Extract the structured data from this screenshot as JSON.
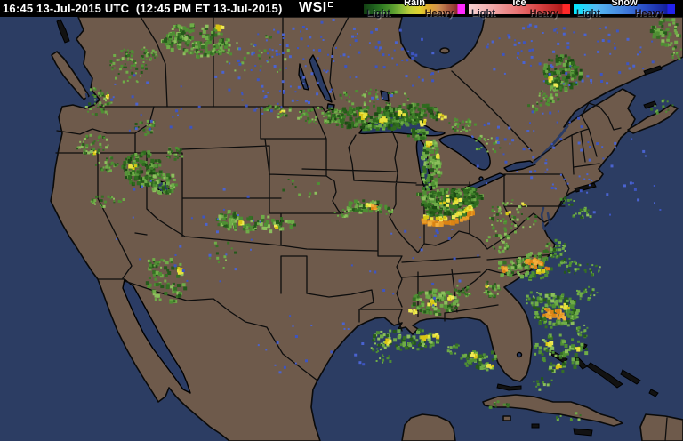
{
  "header": {
    "time_utc": "16:45 13-Jul-2015 UTC",
    "time_et": "(12:45 PM ET 13-Jul-2015)",
    "logo_text": "WSI",
    "logo_mark_icon": "square-mark",
    "bg_color": "#000000",
    "text_color": "#ffffff"
  },
  "legend": {
    "sections": [
      {
        "id": "rain",
        "label": "Rain",
        "light_label": "Light",
        "heavy_label": "Heavy",
        "gradient": [
          "#123f12",
          "#1d5c1d",
          "#2f7a22",
          "#55992e",
          "#86b83a",
          "#c2cf3a",
          "#e0d22e",
          "#e0a92e",
          "#cf8f52",
          "#a85c41",
          "#8c2d2d",
          "#ff2aff"
        ]
      },
      {
        "id": "ice",
        "label": "Ice",
        "light_label": "Light",
        "heavy_label": "Heavy",
        "gradient": [
          "#f6d2d2",
          "#f0a8a8",
          "#e87878",
          "#d94444",
          "#b01818",
          "#ff2828"
        ]
      },
      {
        "id": "snow",
        "label": "Snow",
        "light_label": "Light",
        "heavy_label": "Heavy",
        "gradient": [
          "#00eaff",
          "#55b8f2",
          "#4688e0",
          "#2b50c8",
          "#14209e",
          "#2222ee"
        ]
      }
    ]
  },
  "map": {
    "colors": {
      "ocean": "#2c3d63",
      "land": "#6e5a4b",
      "lake": "#2b3c64",
      "border": "#0d0d0d"
    },
    "palettes": {
      "g": [
        "#8cbf5c",
        "#6fac48",
        "#6fac48",
        "#4e8f33",
        "#4e8f33",
        "#356f24",
        "#25591b"
      ],
      "gd": [
        "#1c4a14",
        "#245a18",
        "#2f6b1f",
        "#2f6b1f",
        "#3d7d28",
        "#57963a",
        "#6fac48"
      ],
      "y": [
        "#e6e23c",
        "#d8c414",
        "#efea55"
      ],
      "o": [
        "#e89b28",
        "#db8414",
        "#f2ae3c"
      ],
      "b": [
        "#3d55c2",
        "#4a63d0"
      ]
    },
    "radar_cells": [
      [
        196,
        40,
        16,
        12,
        45,
        3,
        "g"
      ],
      [
        222,
        46,
        36,
        18,
        150,
        3,
        "g"
      ],
      [
        247,
        31,
        4,
        3,
        5,
        3,
        "y"
      ],
      [
        250,
        55,
        12,
        8,
        30,
        2,
        "g"
      ],
      [
        145,
        75,
        22,
        20,
        60,
        2,
        "g"
      ],
      [
        168,
        60,
        10,
        8,
        20,
        2,
        "g"
      ],
      [
        290,
        62,
        38,
        26,
        28,
        2,
        "g"
      ],
      [
        112,
        115,
        16,
        18,
        40,
        2,
        "g"
      ],
      [
        121,
        108,
        3,
        2,
        4,
        2,
        "y"
      ],
      [
        105,
        163,
        20,
        12,
        45,
        2,
        "g"
      ],
      [
        120,
        185,
        14,
        10,
        30,
        2,
        "g"
      ],
      [
        108,
        172,
        3,
        2,
        4,
        2,
        "y"
      ],
      [
        165,
        143,
        13,
        9,
        22,
        2,
        "g"
      ],
      [
        160,
        190,
        22,
        20,
        150,
        3,
        "gd"
      ],
      [
        184,
        205,
        15,
        13,
        55,
        3,
        "g"
      ],
      [
        150,
        187,
        4,
        3,
        6,
        3,
        "y"
      ],
      [
        196,
        173,
        10,
        7,
        22,
        2,
        "g"
      ],
      [
        120,
        226,
        20,
        8,
        26,
        2,
        "g"
      ],
      [
        188,
        316,
        24,
        25,
        70,
        3,
        "g"
      ],
      [
        203,
        304,
        4,
        3,
        5,
        3,
        "y"
      ],
      [
        174,
        296,
        10,
        7,
        18,
        2,
        "g"
      ],
      [
        250,
        287,
        17,
        16,
        12,
        2,
        "g"
      ],
      [
        420,
        133,
        56,
        13,
        240,
        3,
        "gd"
      ],
      [
        360,
        130,
        26,
        10,
        55,
        2,
        "g"
      ],
      [
        468,
        128,
        30,
        12,
        90,
        3,
        "gd"
      ],
      [
        408,
        130,
        4,
        3,
        7,
        3,
        "y"
      ],
      [
        432,
        136,
        4,
        3,
        7,
        3,
        "y"
      ],
      [
        452,
        128,
        4,
        3,
        6,
        3,
        "y"
      ],
      [
        476,
        138,
        4,
        3,
        6,
        3,
        "y"
      ],
      [
        497,
        131,
        4,
        3,
        5,
        3,
        "y"
      ],
      [
        420,
        110,
        40,
        11,
        40,
        2,
        "g"
      ],
      [
        310,
        125,
        20,
        7,
        26,
        2,
        "g"
      ],
      [
        318,
        126,
        3,
        2,
        4,
        2,
        "y"
      ],
      [
        520,
        140,
        16,
        8,
        30,
        2,
        "g"
      ],
      [
        485,
        185,
        11,
        28,
        100,
        3,
        "g"
      ],
      [
        482,
        162,
        3,
        3,
        5,
        3,
        "y"
      ],
      [
        492,
        176,
        3,
        2,
        4,
        3,
        "y"
      ],
      [
        470,
        151,
        12,
        6,
        26,
        3,
        "gd"
      ],
      [
        505,
        230,
        32,
        17,
        240,
        3,
        "gd"
      ],
      [
        526,
        222,
        17,
        11,
        70,
        3,
        "gd"
      ],
      [
        505,
        228,
        14,
        8,
        12,
        3,
        "y"
      ],
      [
        480,
        218,
        10,
        7,
        25,
        3,
        "g"
      ],
      [
        408,
        232,
        22,
        7,
        55,
        3,
        "g"
      ],
      [
        413,
        231,
        5,
        2,
        8,
        3,
        "y"
      ],
      [
        419,
        233,
        4,
        2,
        6,
        3,
        "o"
      ],
      [
        432,
        236,
        10,
        5,
        20,
        2,
        "g"
      ],
      [
        385,
        240,
        9,
        5,
        14,
        2,
        "g"
      ],
      [
        290,
        252,
        42,
        9,
        70,
        3,
        "g"
      ],
      [
        258,
        248,
        14,
        10,
        45,
        3,
        "g"
      ],
      [
        270,
        250,
        3,
        2,
        4,
        3,
        "y"
      ],
      [
        310,
        256,
        3,
        2,
        3,
        3,
        "y"
      ],
      [
        340,
        212,
        26,
        13,
        10,
        2,
        "g"
      ],
      [
        575,
        245,
        28,
        22,
        55,
        2,
        "g"
      ],
      [
        572,
        240,
        3,
        2,
        4,
        2,
        "y"
      ],
      [
        590,
        230,
        3,
        2,
        4,
        2,
        "y"
      ],
      [
        560,
        272,
        15,
        12,
        28,
        2,
        "g"
      ],
      [
        600,
        300,
        20,
        16,
        85,
        3,
        "g"
      ],
      [
        600,
        296,
        10,
        5,
        16,
        3,
        "o"
      ],
      [
        608,
        306,
        4,
        3,
        6,
        3,
        "y"
      ],
      [
        625,
        280,
        14,
        10,
        38,
        2,
        "g"
      ],
      [
        641,
        300,
        12,
        10,
        28,
        2,
        "g"
      ],
      [
        571,
        301,
        12,
        10,
        32,
        3,
        "g"
      ],
      [
        568,
        303,
        4,
        3,
        7,
        3,
        "o"
      ],
      [
        625,
        350,
        26,
        20,
        120,
        3,
        "g"
      ],
      [
        622,
        352,
        12,
        6,
        26,
        3,
        "o"
      ],
      [
        636,
        345,
        5,
        3,
        8,
        3,
        "y"
      ],
      [
        660,
        330,
        12,
        8,
        22,
        2,
        "g"
      ],
      [
        600,
        336,
        10,
        8,
        22,
        2,
        "g"
      ],
      [
        666,
        302,
        10,
        8,
        14,
        2,
        "g"
      ],
      [
        655,
        240,
        12,
        8,
        18,
        2,
        "g"
      ],
      [
        638,
        226,
        8,
        6,
        10,
        2,
        "g"
      ],
      [
        553,
        325,
        12,
        9,
        35,
        2,
        "g"
      ],
      [
        548,
        322,
        3,
        2,
        4,
        2,
        "y"
      ],
      [
        490,
        340,
        28,
        14,
        100,
        3,
        "g"
      ],
      [
        485,
        341,
        5,
        3,
        8,
        3,
        "y"
      ],
      [
        506,
        336,
        4,
        3,
        6,
        3,
        "y"
      ],
      [
        465,
        350,
        4,
        3,
        6,
        3,
        "y"
      ],
      [
        521,
        326,
        10,
        8,
        22,
        2,
        "g"
      ],
      [
        455,
        382,
        40,
        12,
        80,
        3,
        "g"
      ],
      [
        437,
        385,
        4,
        3,
        7,
        3,
        "y"
      ],
      [
        478,
        380,
        4,
        3,
        6,
        3,
        "y"
      ],
      [
        491,
        378,
        3,
        2,
        4,
        3,
        "y"
      ],
      [
        425,
        391,
        10,
        6,
        16,
        2,
        "g"
      ],
      [
        432,
        405,
        12,
        6,
        9,
        2,
        "g"
      ],
      [
        540,
        405,
        22,
        12,
        50,
        3,
        "g"
      ],
      [
        533,
        400,
        4,
        3,
        6,
        3,
        "y"
      ],
      [
        552,
        412,
        3,
        2,
        4,
        3,
        "y"
      ],
      [
        511,
        393,
        8,
        6,
        12,
        2,
        "g"
      ],
      [
        630,
        396,
        30,
        22,
        70,
        3,
        "g"
      ],
      [
        618,
        385,
        4,
        3,
        6,
        3,
        "y"
      ],
      [
        649,
        392,
        3,
        2,
        4,
        3,
        "y"
      ],
      [
        628,
        412,
        3,
        2,
        4,
        3,
        "y"
      ],
      [
        656,
        372,
        10,
        8,
        16,
        2,
        "g"
      ],
      [
        611,
        431,
        12,
        8,
        12,
        2,
        "g"
      ],
      [
        632,
        82,
        22,
        20,
        130,
        3,
        "gd"
      ],
      [
        619,
        89,
        4,
        3,
        8,
        3,
        "y"
      ],
      [
        624,
        97,
        3,
        2,
        5,
        3,
        "y"
      ],
      [
        617,
        109,
        12,
        9,
        35,
        2,
        "g"
      ],
      [
        601,
        120,
        8,
        6,
        10,
        2,
        "g"
      ],
      [
        750,
        36,
        18,
        15,
        55,
        3,
        "g"
      ],
      [
        762,
        60,
        8,
        8,
        14,
        2,
        "g"
      ],
      [
        560,
        456,
        15,
        5,
        10,
        2,
        "g"
      ],
      [
        640,
        470,
        14,
        7,
        8,
        2,
        "g"
      ],
      [
        745,
        120,
        14,
        9,
        12,
        2,
        "g"
      ],
      [
        545,
        162,
        20,
        11,
        18,
        2,
        "g"
      ],
      [
        380,
        70,
        120,
        48,
        110,
        2,
        "b"
      ],
      [
        640,
        60,
        100,
        38,
        80,
        2,
        "b"
      ],
      [
        600,
        170,
        80,
        48,
        55,
        2,
        "b"
      ],
      [
        300,
        92,
        58,
        38,
        35,
        2,
        "b"
      ],
      [
        210,
        260,
        85,
        75,
        28,
        2,
        "b"
      ],
      [
        460,
        300,
        80,
        55,
        22,
        2,
        "b"
      ],
      [
        340,
        390,
        80,
        40,
        20,
        2,
        "b"
      ],
      [
        700,
        210,
        50,
        60,
        25,
        2,
        "b"
      ],
      [
        170,
        120,
        60,
        40,
        20,
        2,
        "b"
      ]
    ],
    "radar_arcs": [
      {
        "pts": [
          [
            474,
            248
          ],
          [
            484,
            251
          ],
          [
            496,
            252
          ],
          [
            510,
            250
          ],
          [
            523,
            245
          ],
          [
            534,
            237
          ]
        ],
        "pal": "o",
        "n": 46,
        "s": 4
      },
      {
        "pts": [
          [
            476,
            243
          ],
          [
            490,
            246
          ],
          [
            505,
            245
          ],
          [
            519,
            240
          ],
          [
            531,
            232
          ]
        ],
        "pal": "y",
        "n": 34,
        "s": 3
      },
      {
        "pts": [
          [
            600,
            294
          ],
          [
            610,
            298
          ],
          [
            618,
            304
          ]
        ],
        "pal": "o",
        "n": 12,
        "s": 3
      },
      {
        "pts": [
          [
            614,
            348
          ],
          [
            624,
            354
          ],
          [
            634,
            358
          ]
        ],
        "pal": "o",
        "n": 14,
        "s": 3
      }
    ]
  }
}
